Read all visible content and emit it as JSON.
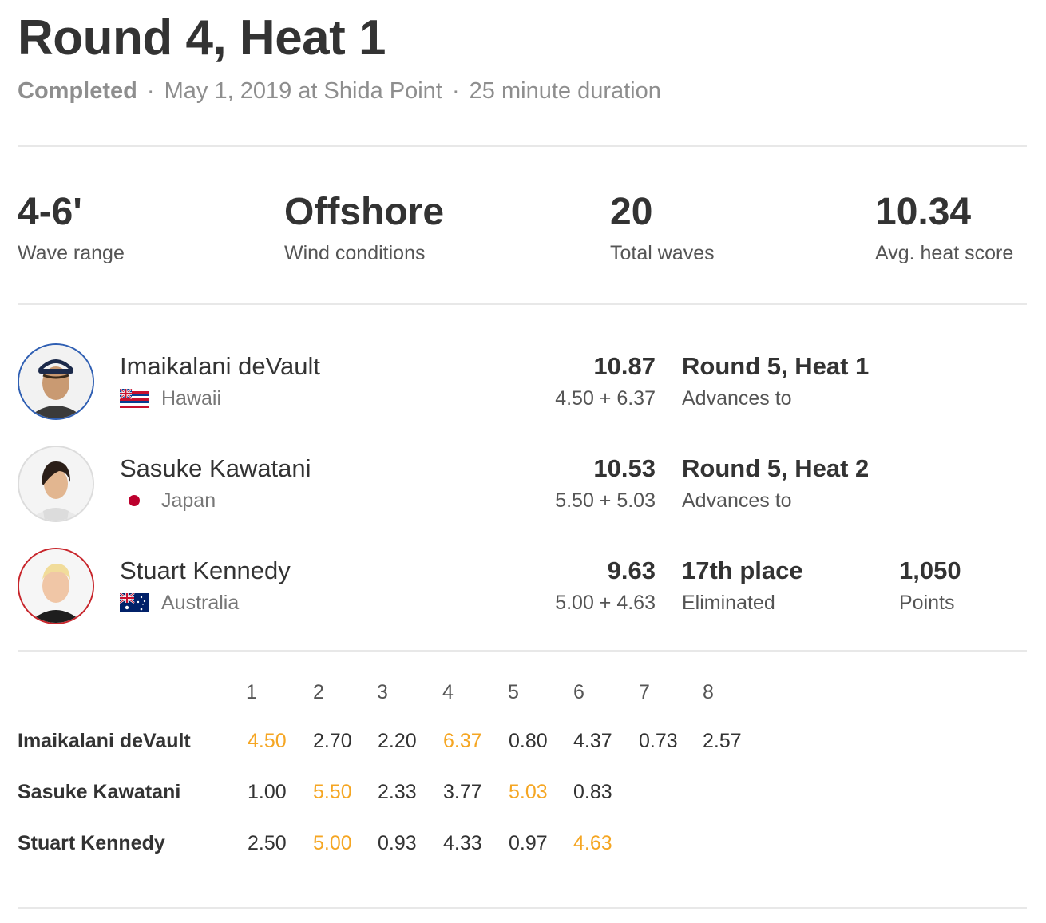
{
  "heat": {
    "title": "Round 4, Heat 1",
    "status": "Completed",
    "separator": "·",
    "date_location": "May 1, 2019 at Shida Point",
    "duration": "25 minute duration"
  },
  "stats": [
    {
      "value": "4-6'",
      "label": "Wave range"
    },
    {
      "value": "Offshore",
      "label": "Wind conditions"
    },
    {
      "value": "20",
      "label": "Total waves"
    },
    {
      "value": "10.34",
      "label": "Avg. heat score"
    }
  ],
  "athletes": [
    {
      "name": "Imaikalani deVault",
      "country": "Hawaii",
      "flag": "hawaii-flag-icon",
      "score": "10.87",
      "waves": "4.50 + 6.37",
      "result": "Round 5, Heat 1",
      "result_sub": "Advances to",
      "ring_color": "#2f5fb3"
    },
    {
      "name": "Sasuke Kawatani",
      "country": "Japan",
      "flag": "japan-flag-icon",
      "score": "10.53",
      "waves": "5.50 + 5.03",
      "result": "Round 5, Heat 2",
      "result_sub": "Advances to",
      "ring_color": "#dcdcdc"
    },
    {
      "name": "Stuart Kennedy",
      "country": "Australia",
      "flag": "australia-flag-icon",
      "score": "9.63",
      "waves": "5.00 + 4.63",
      "result": "17th place",
      "result_sub": "Eliminated",
      "points": "1,050",
      "points_label": "Points",
      "ring_color": "#c8262c"
    }
  ],
  "wave_table": {
    "headers": [
      "1",
      "2",
      "3",
      "4",
      "5",
      "6",
      "7",
      "8"
    ],
    "highlight_color": "#f5a623",
    "rows": [
      {
        "name": "Imaikalani deVault",
        "scores": [
          "4.50",
          "2.70",
          "2.20",
          "6.37",
          "0.80",
          "4.37",
          "0.73",
          "2.57"
        ],
        "counting": [
          0,
          3
        ]
      },
      {
        "name": "Sasuke Kawatani",
        "scores": [
          "1.00",
          "5.50",
          "2.33",
          "3.77",
          "5.03",
          "0.83"
        ],
        "counting": [
          1,
          4
        ]
      },
      {
        "name": "Stuart Kennedy",
        "scores": [
          "2.50",
          "5.00",
          "0.93",
          "4.33",
          "0.97",
          "4.63"
        ],
        "counting": [
          1,
          5
        ]
      }
    ]
  }
}
